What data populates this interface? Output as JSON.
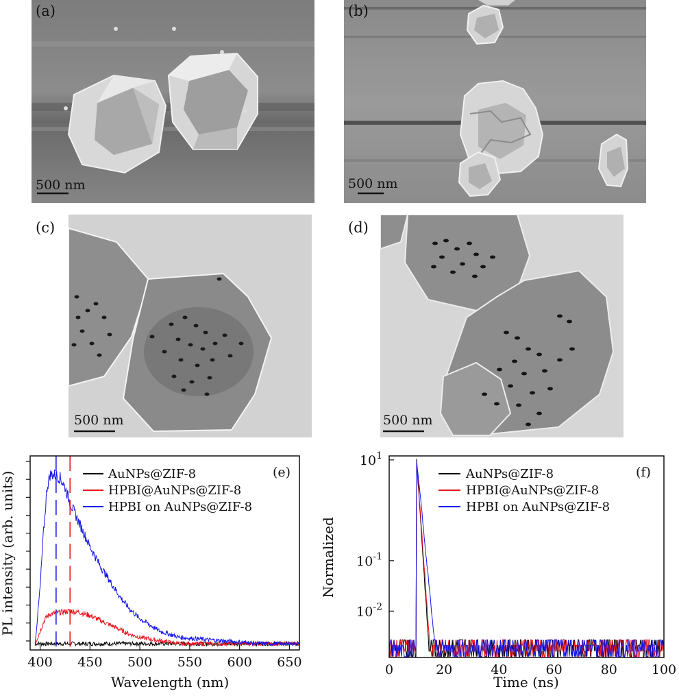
{
  "panels": {
    "a": {
      "label": "(a)",
      "scale": "500 nm"
    },
    "b": {
      "label": "(b)",
      "scale": "500 nm"
    },
    "c": {
      "label": "(c)",
      "scale": "500 nm"
    },
    "d": {
      "label": "(d)",
      "scale": "500 nm"
    }
  },
  "chart_data": [
    {
      "type": "line",
      "panel_label": "(e)",
      "xlabel": "Wavelength (nm)",
      "ylabel": "PL intensity (arb. units)",
      "xlim": [
        390,
        660
      ],
      "xticks": [
        "400",
        "450",
        "500",
        "550",
        "600",
        "650"
      ],
      "yticks_labeled": false,
      "legend_position": "top-right",
      "colors": {
        "AuNPs@ZIF-8": "#000000",
        "HPBI@AuNPs@ZIF-8": "#e8141b",
        "HPBI on AuNPs@ZIF-8": "#1414e8"
      },
      "series": [
        {
          "name": "AuNPs@ZIF-8",
          "color": "#000000",
          "x": [
            395,
            400,
            420,
            450,
            500,
            550,
            600,
            660
          ],
          "y": [
            0.02,
            0.02,
            0.02,
            0.02,
            0.02,
            0.02,
            0.02,
            0.02
          ]
        },
        {
          "name": "HPBI@AuNPs@ZIF-8",
          "color": "#e8141b",
          "x": [
            395,
            400,
            405,
            410,
            420,
            430,
            440,
            450,
            460,
            470,
            480,
            490,
            500,
            520,
            540,
            560,
            600,
            660
          ],
          "y": [
            0.02,
            0.06,
            0.1,
            0.115,
            0.12,
            0.125,
            0.12,
            0.11,
            0.095,
            0.08,
            0.065,
            0.05,
            0.04,
            0.03,
            0.02,
            0.02,
            0.02,
            0.02
          ]
        },
        {
          "name": "HPBI on AuNPs@ZIF-8",
          "color": "#1414e8",
          "x": [
            395,
            400,
            403,
            407,
            410,
            415,
            420,
            425,
            430,
            440,
            450,
            460,
            470,
            480,
            490,
            500,
            510,
            520,
            540,
            560,
            580,
            600,
            630,
            660
          ],
          "y": [
            0.02,
            0.2,
            0.36,
            0.52,
            0.56,
            0.56,
            0.55,
            0.52,
            0.47,
            0.4,
            0.33,
            0.27,
            0.22,
            0.17,
            0.13,
            0.1,
            0.08,
            0.06,
            0.04,
            0.035,
            0.03,
            0.025,
            0.02,
            0.02
          ]
        }
      ],
      "markers": [
        {
          "x": 416,
          "color": "#1414e8",
          "style": "dashed"
        },
        {
          "x": 430,
          "color": "#e8141b",
          "style": "dashed"
        }
      ]
    },
    {
      "type": "line",
      "panel_label": "(f)",
      "xlabel": "Time (ns)",
      "ylabel": "Normalized",
      "xlim": [
        0,
        100
      ],
      "ylim": [
        0.0012,
        12
      ],
      "yscale": "log",
      "xticks": [
        "0",
        "20",
        "40",
        "60",
        "80",
        "100"
      ],
      "yticks": [
        "10^1",
        "10^-1",
        "10^-2"
      ],
      "legend_position": "top-right",
      "colors": {
        "AuNPs@ZIF-8": "#000000",
        "HPBI@AuNPs@ZIF-8": "#e8141b",
        "HPBI on AuNPs@ZIF-8": "#1414e8"
      },
      "series": [
        {
          "name": "AuNPs@ZIF-8",
          "color": "#000000",
          "rise": 10,
          "peak": 10,
          "tau": 1.2,
          "floor": 0.0018
        },
        {
          "name": "HPBI@AuNPs@ZIF-8",
          "color": "#e8141b",
          "rise": 10,
          "peak": 10,
          "tau": 1.3,
          "floor": 0.0016
        },
        {
          "name": "HPBI on AuNPs@ZIF-8",
          "color": "#1414e8",
          "rise": 10,
          "peak": 10,
          "tau": 1.8,
          "floor": 0.0016
        }
      ]
    }
  ]
}
